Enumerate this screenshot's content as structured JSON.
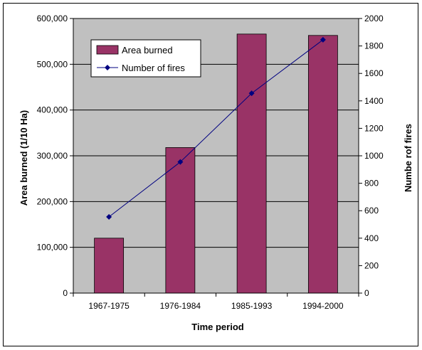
{
  "chart_data": {
    "type": "bar",
    "categories": [
      "1967-1975",
      "1976-1984",
      "1985-1993",
      "1994-2000"
    ],
    "series": [
      {
        "name": "Area burned",
        "type": "bar",
        "axis": "left",
        "color": "#993366",
        "values": [
          120000,
          318000,
          566000,
          563000
        ]
      },
      {
        "name": "Number of fires",
        "type": "line",
        "axis": "right",
        "color": "#000080",
        "values": [
          555,
          955,
          1455,
          1845
        ]
      }
    ],
    "xlabel": "Time period",
    "ylabel": "Area burned (1/10 Ha)",
    "y2label": "Numbe rof fires",
    "ylim": [
      0,
      600000
    ],
    "y2lim": [
      0,
      2000
    ],
    "yticks": [
      "0",
      "100,000",
      "200,000",
      "300,000",
      "400,000",
      "500,000",
      "600,000"
    ],
    "y2ticks": [
      "0",
      "200",
      "400",
      "600",
      "800",
      "1000",
      "1200",
      "1400",
      "1600",
      "1800",
      "2000"
    ],
    "grid": true,
    "plot_background": "#c0c0c0",
    "legend_position": "top-left"
  }
}
